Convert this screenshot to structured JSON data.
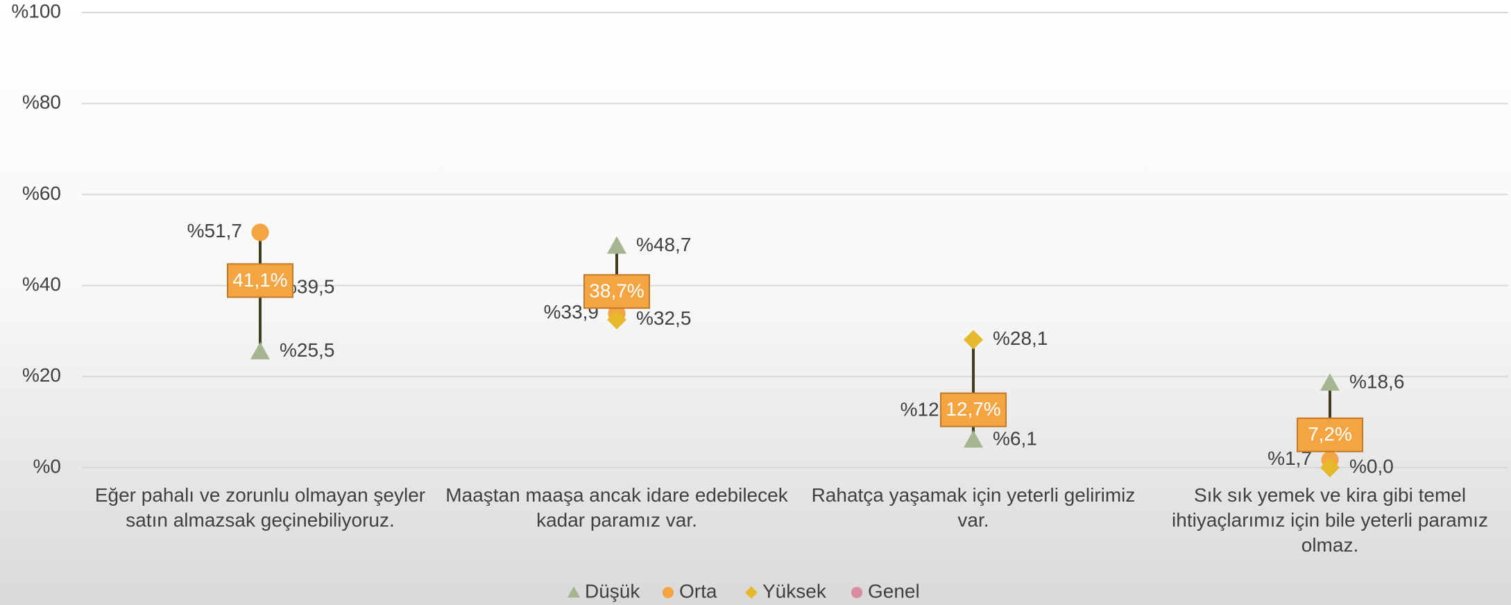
{
  "chart_data": {
    "type": "high-low",
    "categories": [
      "Eğer pahalı ve zorunlu olmayan şeyler satın almazsak geçinebiliyoruz.",
      "Maaştan maaşa ancak idare edebilecek kadar paramız var.",
      "Rahatça yaşamak için yeterli gelirimiz var.",
      "Sık sık yemek ve kira gibi temel ihtiyaçlarımız için bile yeterli paramız olmaz."
    ],
    "series": [
      {
        "name": "Düşük",
        "color": "#a5b592",
        "marker": "triangle",
        "values": [
          25.5,
          48.7,
          6.1,
          18.6
        ],
        "value_labels": [
          "%25,5",
          "%48,7",
          "%6,1",
          "%18,6"
        ]
      },
      {
        "name": "Orta",
        "color": "#f5a444",
        "marker": "circle",
        "values": [
          51.7,
          33.9,
          12.5,
          1.7
        ],
        "value_labels": [
          "%51,7",
          "%33,9",
          "%12,5",
          "%1,7"
        ]
      },
      {
        "name": "Yüksek",
        "color": "#e6b92c",
        "marker": "diamond",
        "values": [
          39.5,
          32.5,
          28.1,
          0.0
        ],
        "value_labels": [
          "%39,5",
          "%32,5",
          "%28,1",
          "%0,0"
        ]
      },
      {
        "name": "Genel",
        "color": "#d98ca0",
        "marker": "box",
        "values": [
          41.1,
          38.7,
          12.7,
          7.2
        ],
        "value_labels": [
          "41,1%",
          "38,7%",
          "12,7%",
          "7,2%"
        ]
      }
    ],
    "ylim": [
      0,
      100
    ],
    "yticks": [
      {
        "value": 0,
        "label": "%0"
      },
      {
        "value": 20,
        "label": "%20"
      },
      {
        "value": 40,
        "label": "%40"
      },
      {
        "value": 60,
        "label": "%60"
      },
      {
        "value": 80,
        "label": "%80"
      },
      {
        "value": 100,
        "label": "%100"
      }
    ],
    "grid": true,
    "legend": "bottom"
  }
}
